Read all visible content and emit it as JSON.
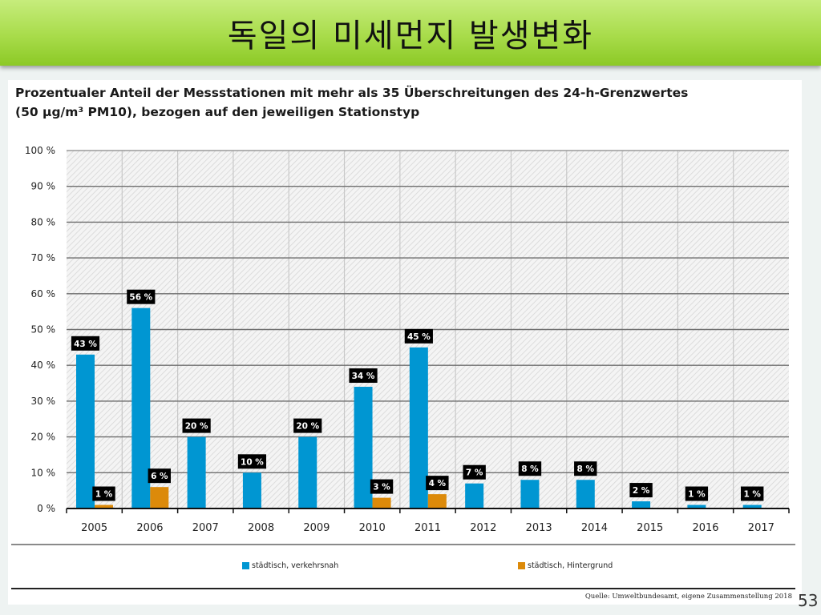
{
  "slide": {
    "title": "독일의 미세먼지 발생변화",
    "page_number": "53"
  },
  "figure": {
    "title_line1": "Prozentualer Anteil der Messstationen mit mehr als 35 Überschreitungen des 24-h-Grenzwertes",
    "title_line2": "(50 µg/m³ PM10), bezogen auf den jeweiligen Stationstyp",
    "source": "Quelle: Umweltbundesamt, eigene Zusammenstellung 2018"
  },
  "colors": {
    "series_blue": "#0096d2",
    "series_orange": "#dc8a0a",
    "label_bg": "#000000",
    "title_bar": "#a8dc4a"
  },
  "chart_data": {
    "type": "bar",
    "title": "Prozentualer Anteil der Messstationen mit mehr als 35 Überschreitungen des 24-h-Grenzwertes (50 µg/m³ PM10), bezogen auf den jeweiligen Stationstyp",
    "xlabel": "",
    "ylabel": "",
    "ylim": [
      0,
      100
    ],
    "yticks": [
      "0 %",
      "10 %",
      "20 %",
      "30 %",
      "40 %",
      "50 %",
      "60 %",
      "70 %",
      "80 %",
      "90 %",
      "100 %"
    ],
    "ytick_values": [
      0,
      10,
      20,
      30,
      40,
      50,
      60,
      70,
      80,
      90,
      100
    ],
    "grid": true,
    "legend_position": "bottom",
    "categories": [
      "2005",
      "2006",
      "2007",
      "2008",
      "2009",
      "2010",
      "2011",
      "2012",
      "2013",
      "2014",
      "2015",
      "2016",
      "2017"
    ],
    "series": [
      {
        "name": "städtisch, verkehrsnah",
        "color": "#0096d2",
        "values": [
          43,
          56,
          20,
          10,
          20,
          34,
          45,
          7,
          8,
          8,
          2,
          1,
          1
        ],
        "labels": [
          "43 %",
          "56 %",
          "20 %",
          "10 %",
          "20 %",
          "34 %",
          "45 %",
          "7 %",
          "8 %",
          "8 %",
          "2 %",
          "1 %",
          "1 %"
        ]
      },
      {
        "name": "städtisch, Hintergrund",
        "color": "#dc8a0a",
        "values": [
          1,
          6,
          0,
          0,
          0,
          3,
          4,
          0,
          0,
          0,
          0,
          0,
          0
        ],
        "labels": [
          "1 %",
          "6 %",
          "",
          "",
          "",
          "3 %",
          "4 %",
          "",
          "",
          "",
          "",
          "",
          ""
        ]
      }
    ]
  }
}
